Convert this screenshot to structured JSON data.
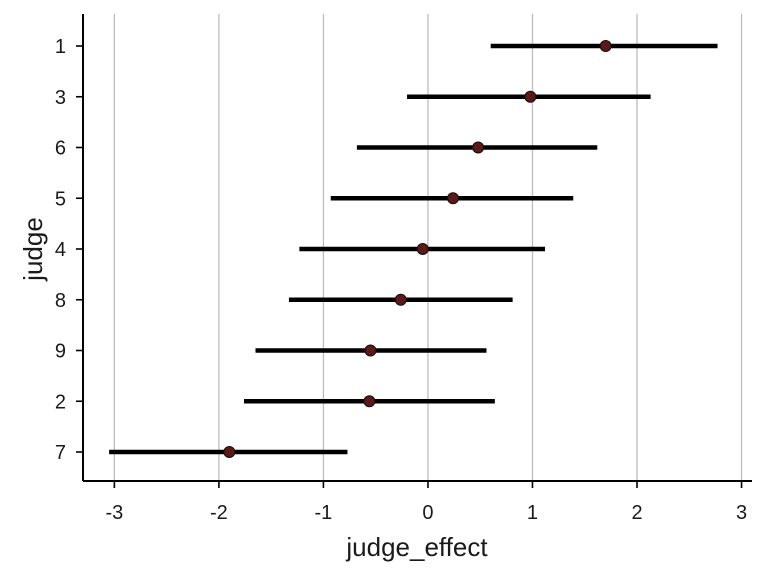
{
  "chart_data": {
    "type": "forest",
    "title": "",
    "xlabel": "judge_effect",
    "ylabel": "judge",
    "xlim": [
      -3.3,
      3.1
    ],
    "x_ticks": [
      -3,
      -2,
      -1,
      0,
      1,
      2,
      3
    ],
    "x_tick_labels": [
      "-3",
      "-2",
      "-1",
      "0",
      "1",
      "2",
      "3"
    ],
    "grid": "vertical lines at x ticks",
    "legend": "none",
    "point_color": "#5a1a1a",
    "interval_color": "#000000",
    "grid_color": "#bdbdbd",
    "categories": [
      "1",
      "3",
      "6",
      "5",
      "4",
      "8",
      "9",
      "2",
      "7"
    ],
    "estimates": [
      1.7,
      0.98,
      0.48,
      0.24,
      -0.05,
      -0.26,
      -0.55,
      -0.56,
      -1.9
    ],
    "lower": [
      0.6,
      -0.2,
      -0.68,
      -0.93,
      -1.23,
      -1.33,
      -1.65,
      -1.76,
      -3.05
    ],
    "upper": [
      2.77,
      2.13,
      1.62,
      1.39,
      1.12,
      0.81,
      0.56,
      0.64,
      -0.77
    ]
  }
}
